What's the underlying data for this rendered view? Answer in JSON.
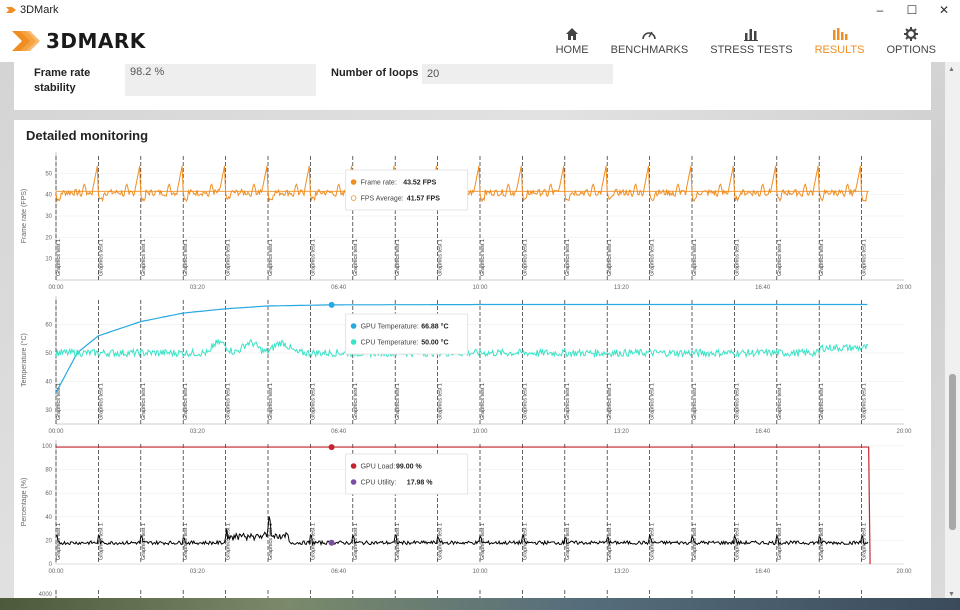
{
  "window": {
    "title": "3DMark",
    "controls": [
      "–",
      "☐",
      "✕"
    ]
  },
  "logo": {
    "text": "3DMARK"
  },
  "nav": [
    {
      "label": "HOME",
      "icon": "home-icon",
      "active": false
    },
    {
      "label": "BENCHMARKS",
      "icon": "gauge-icon",
      "active": false
    },
    {
      "label": "STRESS TESTS",
      "icon": "bars-icon",
      "active": false
    },
    {
      "label": "RESULTS",
      "icon": "results-icon",
      "active": true
    },
    {
      "label": "OPTIONS",
      "icon": "gear-icon",
      "active": false
    }
  ],
  "summary": {
    "frame_rate_stability_label": "Frame rate stability",
    "frame_rate_stability_value": "98.2 %",
    "loops_label": "Number of loops",
    "loops_value": "20"
  },
  "monitoring": {
    "title": "Detailed monitoring",
    "x_ticks": [
      "00:00",
      "03:20",
      "06:40",
      "10:00",
      "13:20",
      "16:40",
      "20:00"
    ],
    "x_range": [
      0,
      1200
    ],
    "marker_label": "Graphics test 1",
    "loop_markers": [
      0,
      60,
      120,
      180,
      240,
      300,
      360,
      420,
      480,
      540,
      600,
      660,
      720,
      780,
      840,
      900,
      960,
      1020,
      1080,
      1140
    ],
    "colors": {
      "fps": "#f08e22",
      "gpu_temp": "#27a9e1",
      "cpu_temp": "#39e3c6",
      "gpu_load": "#c4262e",
      "cpu_util": "#000000",
      "cpu_util_dot": "#7b4ea0"
    },
    "charts": [
      {
        "ylabel": "Frame rate (FPS)",
        "y_ticks": [
          10,
          20,
          30,
          40,
          50
        ],
        "y_range": [
          0,
          60
        ],
        "tooltip": [
          {
            "label": "Frame rate:",
            "value": "43.52 FPS",
            "color": "#f08e22",
            "hollow": false
          },
          {
            "label": "FPS Average:",
            "value": "41.57 FPS",
            "color": "#f08e22",
            "hollow": true
          }
        ]
      },
      {
        "ylabel": "Temperature (°C)",
        "y_ticks": [
          30,
          40,
          50,
          60
        ],
        "y_range": [
          25,
          70
        ],
        "tooltip": [
          {
            "label": "GPU Temperature:",
            "value": "66.88 °C",
            "color": "#27a9e1",
            "hollow": false
          },
          {
            "label": "CPU Temperature:",
            "value": "50.00 °C",
            "color": "#39e3c6",
            "hollow": false
          }
        ]
      },
      {
        "ylabel": "Percentage (%)",
        "y_ticks": [
          0,
          20,
          40,
          60,
          80,
          100
        ],
        "y_range": [
          0,
          105
        ],
        "tooltip": [
          {
            "label": "GPU Load:",
            "value": "99.00 %",
            "color": "#c4262e",
            "hollow": false
          },
          {
            "label": "CPU Utility:",
            "value": "17.98 %",
            "color": "#7b4ea0",
            "hollow": false
          }
        ]
      }
    ],
    "fourth_chart_first_tick": "4000"
  },
  "chart_data": [
    {
      "type": "line",
      "ylabel": "Frame rate (FPS)",
      "x_unit": "seconds",
      "xlim": [
        0,
        1200
      ],
      "ylim": [
        0,
        60
      ],
      "series": [
        {
          "name": "Frame rate",
          "pattern": "per-loop sawtooth between ~38 and ~56 FPS",
          "hover_value": 43.52
        },
        {
          "name": "FPS Average",
          "values": [
            41.57
          ]
        }
      ]
    },
    {
      "type": "line",
      "ylabel": "Temperature (°C)",
      "x_unit": "seconds",
      "xlim": [
        0,
        1200
      ],
      "ylim": [
        25,
        70
      ],
      "series": [
        {
          "name": "GPU Temperature",
          "x": [
            0,
            30,
            60,
            120,
            180,
            240,
            300,
            390,
            600,
            900,
            1150
          ],
          "values": [
            36,
            50,
            56,
            61,
            64,
            65.5,
            66.5,
            66.88,
            67,
            67,
            67
          ]
        },
        {
          "name": "CPU Temperature",
          "baseline": 50,
          "noise_range": [
            47,
            56
          ],
          "hover_value": 50.0
        }
      ]
    },
    {
      "type": "line",
      "ylabel": "Percentage (%)",
      "x_unit": "seconds",
      "xlim": [
        0,
        1200
      ],
      "ylim": [
        0,
        105
      ],
      "series": [
        {
          "name": "GPU Load",
          "x": [
            0,
            1150,
            1152
          ],
          "values": [
            99,
            99,
            0
          ]
        },
        {
          "name": "CPU Utility",
          "baseline": 18,
          "noise_range": [
            14,
            35
          ],
          "hover_value": 17.98
        }
      ]
    }
  ]
}
